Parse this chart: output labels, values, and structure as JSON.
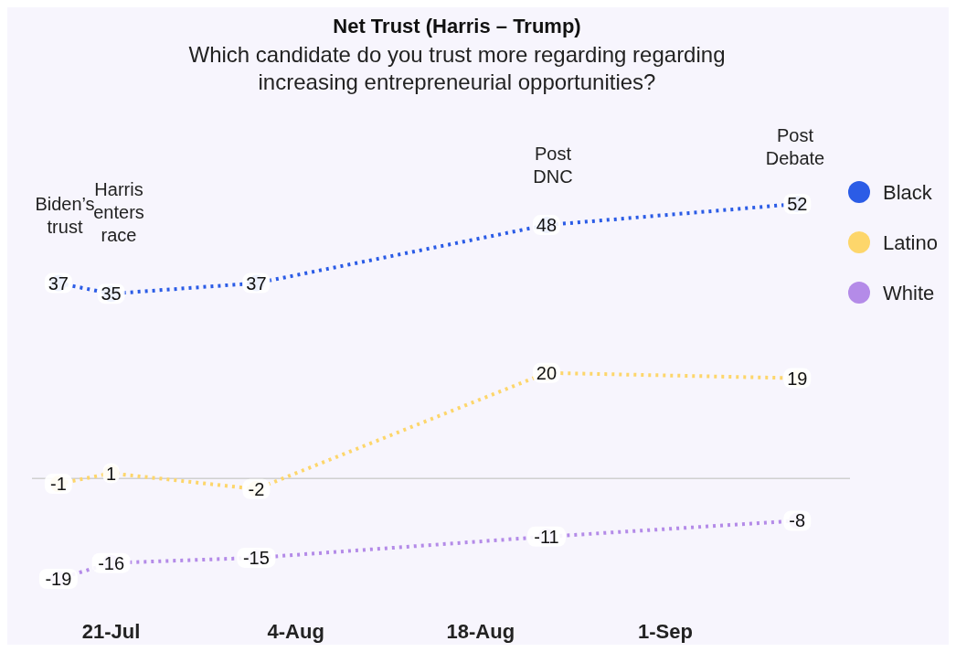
{
  "chart_data": {
    "type": "line",
    "title": "Net Trust (Harris – Trump)",
    "subtitle": "Which candidate do you trust more regarding regarding increasing entrepreneurial opportunities?",
    "x": [
      "--07-17",
      "--07-21",
      "--08-01",
      "--08-23",
      "--09-11"
    ],
    "series": [
      {
        "name": "Black",
        "color": "#2b5ce6",
        "values": [
          37,
          35,
          37,
          48,
          52
        ]
      },
      {
        "name": "Latino",
        "color": "#fdd66b",
        "values": [
          -1,
          1,
          -2,
          20,
          19
        ]
      },
      {
        "name": "White",
        "color": "#b48be8",
        "values": [
          -19,
          -16,
          -15,
          -11,
          -8
        ]
      }
    ],
    "xlim": [
      "--07-15",
      "--09-15"
    ],
    "xticks": [
      {
        "value": "--07-21",
        "label": "21-Jul"
      },
      {
        "value": "--08-04",
        "label": "4-Aug"
      },
      {
        "value": "--08-18",
        "label": "18-Aug"
      },
      {
        "value": "--09-01",
        "label": "1-Sep"
      }
    ],
    "tick_labels": "x",
    "ref_lines": [
      {
        "axis": "y",
        "value": 0,
        "color": "#d0d0d0"
      }
    ],
    "annotations": [
      "Biden’s\ntrust",
      "Harris\nenters\nrace",
      "Post\nDNC",
      "Post\nDebate"
    ],
    "data_labels": true,
    "legend": "right",
    "marker": "circle",
    "line_style": "dotted"
  }
}
